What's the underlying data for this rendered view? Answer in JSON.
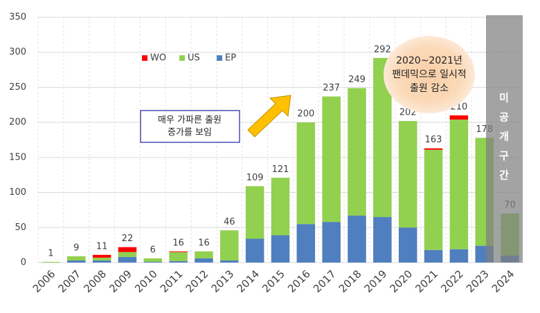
{
  "chart_data": {
    "type": "bar",
    "stacked": true,
    "categories": [
      "2006",
      "2007",
      "2008",
      "2009",
      "2010",
      "2011",
      "2012",
      "2013",
      "2014",
      "2015",
      "2016",
      "2017",
      "2018",
      "2019",
      "2020",
      "2021",
      "2022",
      "2023",
      "2024"
    ],
    "series": [
      {
        "name": "EP",
        "color": "#4f7fbf",
        "values": [
          0,
          3,
          3,
          8,
          1,
          2,
          6,
          3,
          34,
          39,
          55,
          58,
          67,
          65,
          50,
          18,
          19,
          24,
          10
        ]
      },
      {
        "name": "US",
        "color": "#92d050",
        "values": [
          1,
          6,
          4,
          7,
          5,
          13,
          10,
          43,
          75,
          82,
          145,
          179,
          182,
          227,
          152,
          143,
          185,
          154,
          60
        ]
      },
      {
        "name": "WO",
        "color": "#ff0000",
        "values": [
          0,
          0,
          4,
          7,
          0,
          1,
          0,
          0,
          0,
          0,
          0,
          0,
          0,
          0,
          0,
          2,
          6,
          0,
          0
        ]
      }
    ],
    "totals": [
      1,
      9,
      11,
      22,
      6,
      16,
      16,
      46,
      109,
      121,
      200,
      237,
      249,
      292,
      202,
      163,
      210,
      178,
      70
    ],
    "ylim": [
      0,
      350
    ],
    "yticks": [
      0,
      50,
      100,
      150,
      200,
      250,
      300,
      350
    ],
    "grid": true,
    "annotations": [
      {
        "lines": [
          "매우 가파른 출원",
          "증가를 보임"
        ]
      },
      {
        "lines": [
          "2020~2021년",
          "팬데믹으로 일시적",
          "출원 감소"
        ]
      },
      {
        "lines": [
          "미",
          "공",
          "개",
          "구",
          "간"
        ]
      }
    ]
  }
}
